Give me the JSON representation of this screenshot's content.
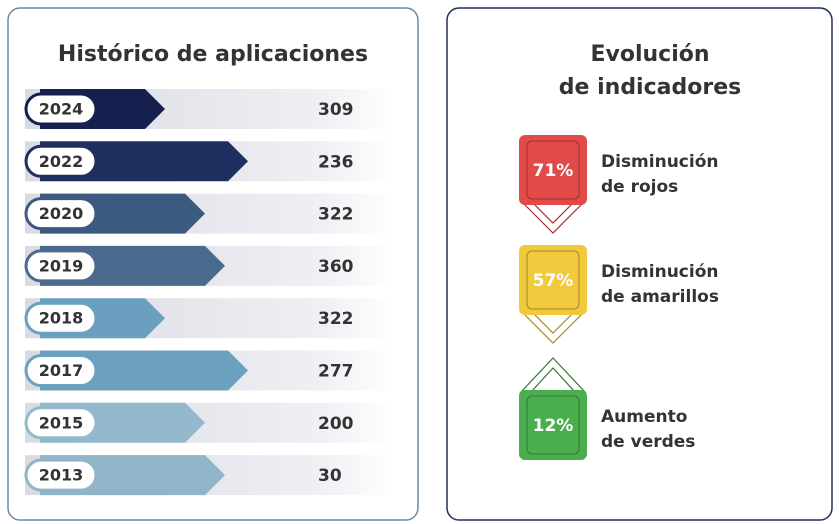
{
  "history": {
    "title": "Histórico de aplicaciones",
    "rows": [
      [
        "2024",
        "309"
      ],
      [
        "2022",
        "236"
      ],
      [
        "2020",
        "322"
      ],
      [
        "2019",
        "360"
      ],
      [
        "2018",
        "322"
      ],
      [
        "2017",
        "277"
      ],
      [
        "2015",
        "200"
      ],
      [
        "2013",
        "30"
      ]
    ]
  },
  "indicators": {
    "title": [
      "Evolución",
      "de indicadores"
    ],
    "items": [
      {
        "value": "71%",
        "label": [
          "Disminución",
          "de rojos"
        ]
      },
      {
        "value": "57%",
        "label": [
          "Disminución",
          "de amarillos"
        ]
      },
      {
        "value": "12%",
        "label": [
          "Aumento",
          "de verdes"
        ]
      }
    ]
  }
}
